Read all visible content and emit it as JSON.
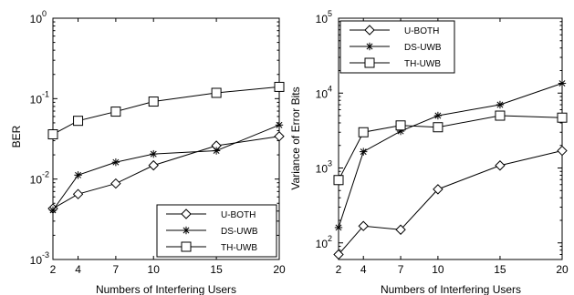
{
  "chart_data": [
    {
      "type": "line",
      "yscale": "log",
      "ylim": [
        0.001,
        1
      ],
      "xlim": [
        2,
        20
      ],
      "x": [
        2,
        4,
        7,
        10,
        15,
        20
      ],
      "x_tick_labels": [
        "2",
        "4",
        "7",
        "10",
        "15",
        "20"
      ],
      "y_tick_labels": [
        {
          "base": "10",
          "exp": "0",
          "value": 1
        },
        {
          "base": "10",
          "exp": "-1",
          "value": 0.1
        },
        {
          "base": "10",
          "exp": "-2",
          "value": 0.01
        },
        {
          "base": "10",
          "exp": "-3",
          "value": 0.001
        }
      ],
      "xlabel": "Numbers of Interfering Users",
      "ylabel": "BER",
      "legend_position": "bottom-right",
      "grid": false,
      "series": [
        {
          "name": "U-BOTH",
          "marker": "diamond",
          "values": [
            0.0043,
            0.0065,
            0.0088,
            0.0148,
            0.026,
            0.034
          ]
        },
        {
          "name": "DS-UWB",
          "marker": "asterisk",
          "values": [
            0.0041,
            0.0112,
            0.0162,
            0.0205,
            0.0225,
            0.047
          ]
        },
        {
          "name": "TH-UWB",
          "marker": "square",
          "values": [
            0.036,
            0.053,
            0.069,
            0.092,
            0.118,
            0.14
          ]
        }
      ]
    },
    {
      "type": "line",
      "yscale": "log",
      "ylim": [
        60,
        100000
      ],
      "xlim": [
        2,
        20
      ],
      "x": [
        2,
        4,
        7,
        10,
        15,
        20
      ],
      "x_tick_labels": [
        "2",
        "4",
        "7",
        "10",
        "15",
        "20"
      ],
      "y_tick_labels": [
        {
          "base": "10",
          "exp": "5",
          "value": 100000
        },
        {
          "base": "10",
          "exp": "4",
          "value": 10000
        },
        {
          "base": "10",
          "exp": "3",
          "value": 1000
        },
        {
          "base": "10",
          "exp": "2",
          "value": 100
        }
      ],
      "xlabel": "Numbers of Interfering Users",
      "ylabel": "Variance of Error Bits",
      "legend_position": "top-left",
      "grid": false,
      "series": [
        {
          "name": "U-BOTH",
          "marker": "diamond",
          "values": [
            70,
            168,
            150,
            520,
            1080,
            1700
          ]
        },
        {
          "name": "DS-UWB",
          "marker": "asterisk",
          "values": [
            160,
            1650,
            3100,
            5000,
            7000,
            13500
          ]
        },
        {
          "name": "TH-UWB",
          "marker": "square",
          "values": [
            690,
            3000,
            3700,
            3500,
            5000,
            4700
          ]
        }
      ]
    }
  ]
}
